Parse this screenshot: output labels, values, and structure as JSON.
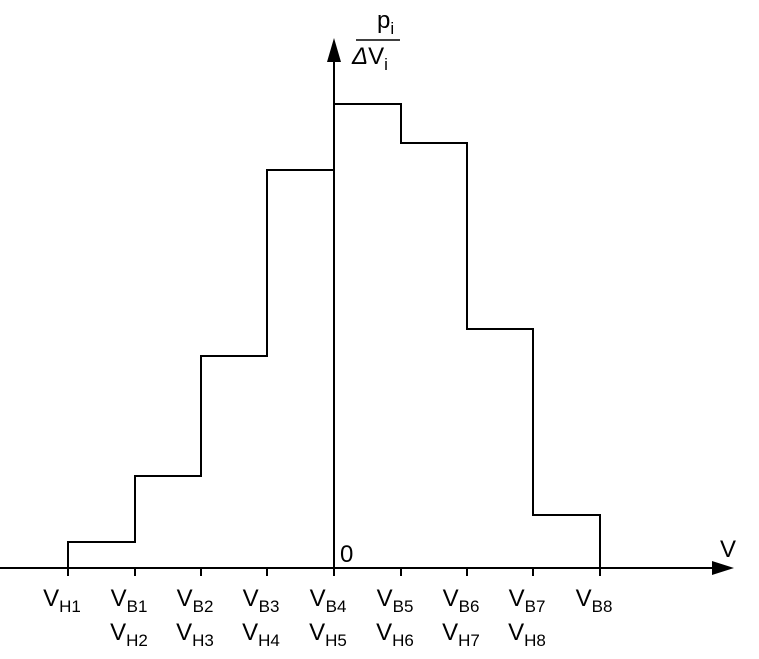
{
  "axes": {
    "x_label": "V",
    "origin": "0",
    "y_label": {
      "numerator": {
        "base": "p",
        "sub": "i"
      },
      "denominator": {
        "prefix": "Δ",
        "base": "V",
        "sub": "i"
      }
    }
  },
  "ticks": [
    {
      "upper": {
        "base": "V",
        "sub": "H1"
      }
    },
    {
      "upper": {
        "base": "V",
        "sub": "B1"
      },
      "lower": {
        "base": "V",
        "sub": "H2"
      }
    },
    {
      "upper": {
        "base": "V",
        "sub": "B2"
      },
      "lower": {
        "base": "V",
        "sub": "H3"
      }
    },
    {
      "upper": {
        "base": "V",
        "sub": "B3"
      },
      "lower": {
        "base": "V",
        "sub": "H4"
      }
    },
    {
      "upper": {
        "base": "V",
        "sub": "B4"
      },
      "lower": {
        "base": "V",
        "sub": "H5"
      }
    },
    {
      "upper": {
        "base": "V",
        "sub": "B5"
      },
      "lower": {
        "base": "V",
        "sub": "H6"
      }
    },
    {
      "upper": {
        "base": "V",
        "sub": "B6"
      },
      "lower": {
        "base": "V",
        "sub": "H7"
      }
    },
    {
      "upper": {
        "base": "V",
        "sub": "B7"
      },
      "lower": {
        "base": "V",
        "sub": "H8"
      }
    },
    {
      "upper": {
        "base": "V",
        "sub": "B8"
      }
    }
  ]
}
